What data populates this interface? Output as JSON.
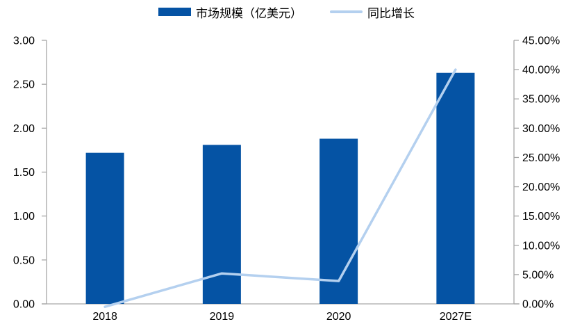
{
  "colors": {
    "bar": "#0553A4",
    "line": "#B4D0EF",
    "axis": "#A6A6A6",
    "text": "#000000"
  },
  "legend": {
    "items": [
      {
        "label": "市场规模（亿美元）",
        "swatch": "bar"
      },
      {
        "label": "同比增长",
        "swatch": "line"
      }
    ]
  },
  "chart_data": {
    "type": "bar+line",
    "title": "",
    "categories": [
      "2018",
      "2019",
      "2020",
      "2027E"
    ],
    "series": [
      {
        "name": "市场规模（亿美元）",
        "type": "bar",
        "axis": "left",
        "unit": "亿美元",
        "values": [
          1.72,
          1.81,
          1.88,
          2.63
        ]
      },
      {
        "name": "同比增长",
        "type": "line",
        "axis": "right",
        "unit": "%",
        "values": [
          -0.5,
          5.2,
          3.9,
          40.0
        ]
      }
    ],
    "left_axis": {
      "min": 0,
      "max": 3,
      "step": 0.5,
      "ticks": [
        {
          "v": 0.0,
          "label": "0.00"
        },
        {
          "v": 0.5,
          "label": "0.50"
        },
        {
          "v": 1.0,
          "label": "1.00"
        },
        {
          "v": 1.5,
          "label": "1.50"
        },
        {
          "v": 2.0,
          "label": "2.00"
        },
        {
          "v": 2.5,
          "label": "2.50"
        },
        {
          "v": 3.0,
          "label": "3.00"
        }
      ]
    },
    "right_axis": {
      "min": 0,
      "max": 45,
      "step": 5,
      "ticks": [
        {
          "v": 0,
          "label": "0.00%"
        },
        {
          "v": 5,
          "label": "5.00%"
        },
        {
          "v": 10,
          "label": "10.00%"
        },
        {
          "v": 15,
          "label": "15.00%"
        },
        {
          "v": 20,
          "label": "20.00%"
        },
        {
          "v": 25,
          "label": "25.00%"
        },
        {
          "v": 30,
          "label": "30.00%"
        },
        {
          "v": 35,
          "label": "35.00%"
        },
        {
          "v": 40,
          "label": "40.00%"
        },
        {
          "v": 45,
          "label": "45.00%"
        }
      ]
    },
    "grid": false,
    "legend_position": "top"
  }
}
